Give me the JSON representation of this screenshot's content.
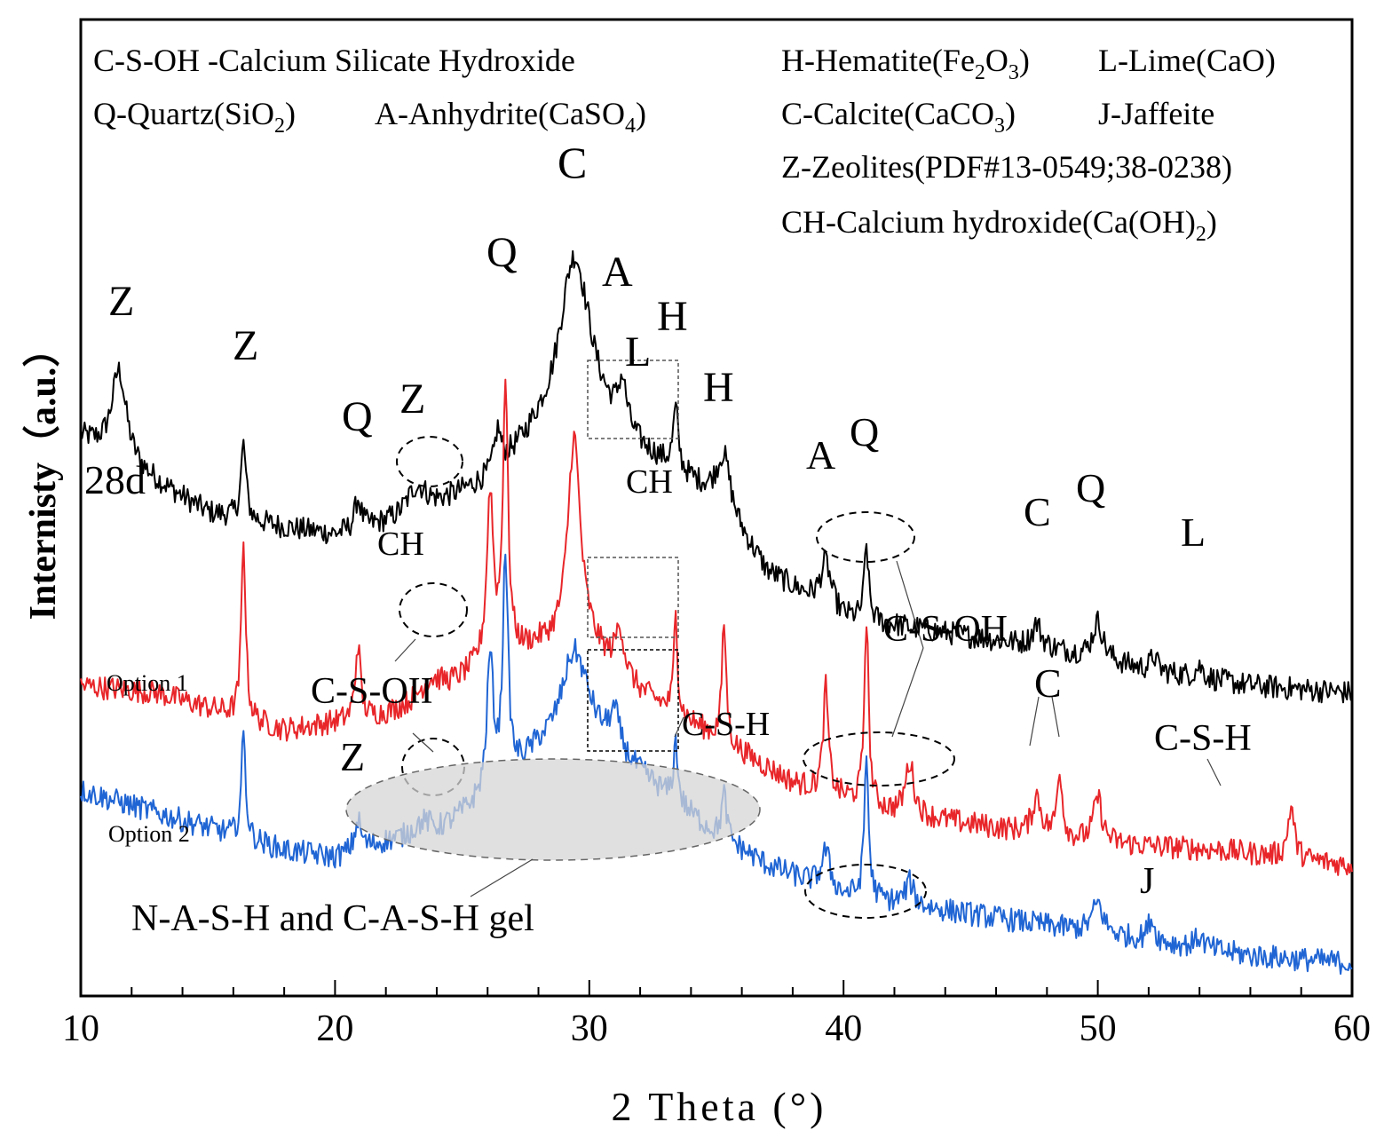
{
  "chart_data": {
    "type": "line",
    "title": "",
    "xlabel": "2 Theta (°)",
    "ylabel": "Internisty（a.u.）",
    "xlim": [
      10,
      60
    ],
    "xticks": [
      10,
      20,
      30,
      40,
      50,
      60
    ],
    "ylim": [
      0,
      100
    ],
    "legend_lines": [
      {
        "label": "C-S-OH -Calcium Silicate Hydroxide"
      },
      {
        "label": "Q-Quartz(SiO",
        "sub": "2",
        "tail": ")"
      },
      {
        "label": "A-Anhydrite(CaSO",
        "sub": "4",
        "tail": ")"
      },
      {
        "label": "H-Hematite(Fe",
        "sub": "2",
        "mid": "O",
        "sub2": "3",
        "tail": ")"
      },
      {
        "label": "L-Lime(CaO)"
      },
      {
        "label": "C-Calcite(CaCO",
        "sub": "3",
        "tail": ")"
      },
      {
        "label": "J-Jaffeite"
      },
      {
        "label": "Z-Zeolites(PDF#13-0549;38-0238)"
      },
      {
        "label": "CH-Calcium hydroxide(Ca(OH)",
        "sub": "2",
        "tail": ")"
      }
    ],
    "series": [
      {
        "name": "28d",
        "color": "#000000",
        "baseline": [
          [
            10,
            70
          ],
          [
            12,
            66
          ],
          [
            15,
            60
          ],
          [
            18,
            58
          ],
          [
            20,
            57
          ],
          [
            23,
            59
          ],
          [
            26,
            64
          ],
          [
            28,
            70
          ],
          [
            30,
            73
          ],
          [
            32,
            68
          ],
          [
            35,
            62
          ],
          [
            37,
            52
          ],
          [
            40,
            46
          ],
          [
            44,
            44
          ],
          [
            48,
            42
          ],
          [
            52,
            39
          ],
          [
            56,
            37
          ],
          [
            60,
            36
          ]
        ],
        "peaks": [
          [
            11.5,
            12,
            0.35
          ],
          [
            16.4,
            10,
            0.12
          ],
          [
            20.9,
            4,
            0.15
          ],
          [
            23.2,
            4,
            0.5
          ],
          [
            26.4,
            5,
            0.15
          ],
          [
            29.4,
            22,
            0.7
          ],
          [
            31.3,
            6,
            0.2
          ],
          [
            33.4,
            8,
            0.12
          ],
          [
            35.3,
            7,
            0.3
          ],
          [
            39.3,
            6,
            0.25
          ],
          [
            40.9,
            10,
            0.1
          ],
          [
            47.6,
            3,
            0.2
          ],
          [
            50.0,
            5,
            0.25
          ],
          [
            52.2,
            2,
            0.15
          ],
          [
            54,
            1.5,
            0.2
          ]
        ]
      },
      {
        "name": "Option 1",
        "color": "#e8262a",
        "baseline": [
          [
            10,
            37
          ],
          [
            13,
            36
          ],
          [
            16,
            33
          ],
          [
            18,
            31
          ],
          [
            20,
            32
          ],
          [
            22,
            33
          ],
          [
            24,
            35
          ],
          [
            26,
            40
          ],
          [
            28,
            42
          ],
          [
            30,
            42
          ],
          [
            32,
            36
          ],
          [
            35,
            30
          ],
          [
            38,
            24
          ],
          [
            42,
            20
          ],
          [
            46,
            18
          ],
          [
            50,
            16
          ],
          [
            55,
            15
          ],
          [
            60,
            13
          ]
        ],
        "peaks": [
          [
            16.4,
            24,
            0.1
          ],
          [
            20.9,
            10,
            0.12
          ],
          [
            23.8,
            3,
            0.6
          ],
          [
            26.1,
            22,
            0.15
          ],
          [
            26.7,
            36,
            0.12
          ],
          [
            29.4,
            28,
            0.3
          ],
          [
            31.2,
            6,
            0.2
          ],
          [
            33.4,
            14,
            0.08
          ],
          [
            35.3,
            16,
            0.1
          ],
          [
            39.3,
            14,
            0.12
          ],
          [
            40.9,
            25,
            0.1
          ],
          [
            42.6,
            7,
            0.2
          ],
          [
            47.6,
            5,
            0.2
          ],
          [
            48.5,
            9,
            0.12
          ],
          [
            50.0,
            6,
            0.2
          ],
          [
            57.6,
            7,
            0.15
          ]
        ]
      },
      {
        "name": "Option 2",
        "color": "#2065d4",
        "baseline": [
          [
            10,
            23
          ],
          [
            13,
            20
          ],
          [
            16,
            17
          ],
          [
            18,
            15
          ],
          [
            20,
            14
          ],
          [
            22,
            16
          ],
          [
            24,
            17
          ],
          [
            26,
            22
          ],
          [
            28,
            28
          ],
          [
            30,
            30
          ],
          [
            32,
            25
          ],
          [
            35,
            17
          ],
          [
            37,
            13
          ],
          [
            40,
            9
          ],
          [
            44,
            7
          ],
          [
            48,
            5
          ],
          [
            52,
            3
          ],
          [
            56,
            1
          ],
          [
            60,
            0
          ]
        ],
        "peaks": [
          [
            16.4,
            14,
            0.1
          ],
          [
            20.9,
            4,
            0.15
          ],
          [
            23.5,
            2,
            0.5
          ],
          [
            26.1,
            18,
            0.15
          ],
          [
            26.7,
            30,
            0.12
          ],
          [
            29.4,
            12,
            0.6
          ],
          [
            31.0,
            5,
            0.25
          ],
          [
            33.4,
            8,
            0.1
          ],
          [
            35.3,
            6,
            0.12
          ],
          [
            39.3,
            5,
            0.2
          ],
          [
            40.9,
            19,
            0.1
          ],
          [
            42.6,
            3,
            0.2
          ],
          [
            50.0,
            4,
            0.25
          ],
          [
            52.1,
            3,
            0.15
          ],
          [
            54,
            1.5,
            0.2
          ]
        ]
      }
    ],
    "annotations": [
      {
        "text": "Z",
        "x": 11.5,
        "series": "28d"
      },
      {
        "text": "Z",
        "x": 16.4,
        "series": "28d"
      },
      {
        "text": "Q",
        "x": 21.0,
        "series": "28d"
      },
      {
        "text": "Z",
        "x": 23.3,
        "series": "28d"
      },
      {
        "text": "Q",
        "x": 26.6,
        "series": "28d"
      },
      {
        "text": "C",
        "x": 29.4,
        "series": "28d"
      },
      {
        "text": "A",
        "x": 31.0,
        "series": "28d"
      },
      {
        "text": "L",
        "x": 31.6,
        "series": "28d"
      },
      {
        "text": "H",
        "x": 33.5,
        "series": "28d"
      },
      {
        "text": "H",
        "x": 35.3,
        "series": "28d"
      },
      {
        "text": "CH",
        "x": 32.2,
        "series": "28d"
      },
      {
        "text": "A",
        "x": 39.3,
        "series": "28d"
      },
      {
        "text": "Q",
        "x": 41.1,
        "series": "28d"
      },
      {
        "text": "C",
        "x": 47.7,
        "series": "28d"
      },
      {
        "text": "Q",
        "x": 50.0,
        "series": "28d"
      },
      {
        "text": "L",
        "x": 53.9,
        "series": "28d"
      },
      {
        "text": "CH",
        "x": 22.9,
        "series": "Option 1"
      },
      {
        "text": "C-S-OH",
        "x": 44.5,
        "series": "Option 1"
      },
      {
        "text": "C",
        "x": 48.2,
        "series": "Option 1"
      },
      {
        "text": "C-S-H",
        "x": 55.0,
        "series": "Option 1"
      },
      {
        "text": "C-S-OII",
        "x": 21.5,
        "series": "Option 1"
      },
      {
        "text": "C-S-H",
        "x": 35.7,
        "series": "Option 2"
      },
      {
        "text": "Z",
        "x": 20.8,
        "series": "Option 2"
      },
      {
        "text": "J",
        "x": 52.0,
        "series": "Option 2"
      },
      {
        "text": "N-A-S-H and C-A-S-H gel",
        "x": 25.5,
        "series": "Option 2"
      }
    ],
    "series_labels": {
      "s1": "28d",
      "s2": "Option 1",
      "s3": "Option 2"
    }
  }
}
